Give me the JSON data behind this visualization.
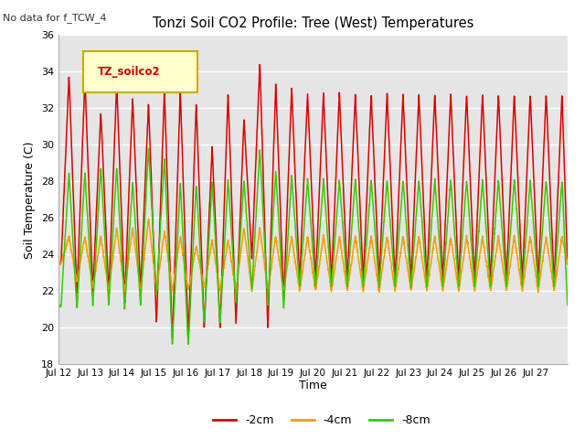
{
  "title": "Tonzi Soil CO2 Profile: Tree (West) Temperatures",
  "no_data_label": "No data for f_TCW_4",
  "ylabel": "Soil Temperature (C)",
  "xlabel": "Time",
  "ylim": [
    18,
    36
  ],
  "yticks": [
    18,
    20,
    22,
    24,
    26,
    28,
    30,
    32,
    34,
    36
  ],
  "plot_bg_color": "#e5e5e5",
  "fig_bg_color": "#ffffff",
  "legend_label": "TZ_soilco2",
  "legend_bg": "#ffffcc",
  "legend_border": "#ccaa00",
  "series_colors": {
    "2cm": "#dd0000",
    "4cm": "#ff9900",
    "8cm": "#33cc00"
  },
  "line_width": 1.1,
  "n_days": 16,
  "x_tick_labels": [
    "Jul 12",
    "Jul 13",
    "Jul 14",
    "Jul 15",
    "Jul 16",
    "Jul 17",
    "Jul 18",
    "Jul 19",
    "Jul 20",
    "Jul 21",
    "Jul 22",
    "Jul 23",
    "Jul 24",
    "Jul 25",
    "Jul 26",
    "Jul 27"
  ],
  "peaks_2cm": [
    23.5,
    33.8,
    21.8,
    33.6,
    21.9,
    31.8,
    21.8,
    33.4,
    21.5,
    32.6,
    22.0,
    32.3,
    20.2,
    33.0,
    19.3,
    33.0,
    19.4,
    32.3,
    20.0,
    29.9,
    20.0,
    32.8,
    20.2,
    31.4,
    23.8,
    34.5,
    19.9,
    33.3,
    21.5,
    33.1,
    22.5,
    32.8
  ],
  "peaks_4cm": [
    23.5,
    25.0,
    22.5,
    25.0,
    22.2,
    25.0,
    22.0,
    25.5,
    22.0,
    25.5,
    22.0,
    26.0,
    22.0,
    25.3,
    22.0,
    25.0,
    22.0,
    24.5,
    22.2,
    24.8,
    22.0,
    24.8,
    22.0,
    25.5,
    22.0,
    25.5,
    22.0,
    25.0,
    22.0,
    25.0,
    22.0,
    25.0
  ],
  "peaks_8cm": [
    21.2,
    28.5,
    21.0,
    28.5,
    21.2,
    28.8,
    21.2,
    28.8,
    21.0,
    28.0,
    21.2,
    29.9,
    21.8,
    29.3,
    19.1,
    28.0,
    19.0,
    27.9,
    20.2,
    28.0,
    20.2,
    28.1,
    21.3,
    28.1,
    22.1,
    29.8,
    21.2,
    28.6,
    21.1,
    28.3,
    22.2,
    28.1
  ]
}
